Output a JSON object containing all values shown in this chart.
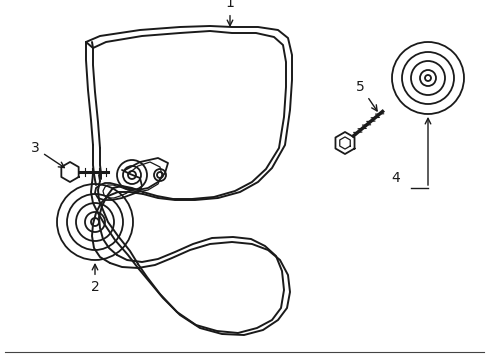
{
  "bg_color": "#ffffff",
  "line_color": "#1a1a1a",
  "figsize": [
    4.89,
    3.6
  ],
  "dpi": 100,
  "belt_lw": 1.4,
  "component_lw": 1.3
}
